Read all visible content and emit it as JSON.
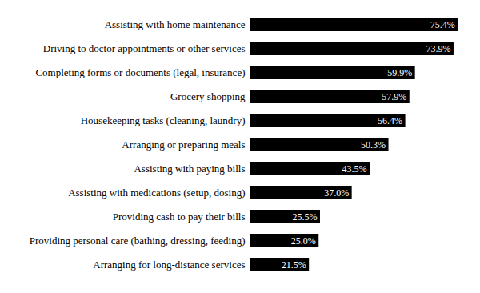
{
  "chart_data": {
    "type": "bar",
    "orientation": "horizontal",
    "categories": [
      "Assisting with home maintenance",
      "Driving to doctor appointments or other services",
      "Completing forms or documents (legal, insurance)",
      "Grocery shopping",
      "Housekeeping tasks (cleaning, laundry)",
      "Arranging or preparing meals",
      "Assisting with paying bills",
      "Assisting with medications (setup, dosing)",
      "Providing cash to pay their bills",
      "Providing personal care (bathing, dressing, feeding)",
      "Arranging for long-distance services"
    ],
    "values": [
      75.4,
      73.9,
      59.9,
      57.9,
      56.4,
      50.3,
      43.5,
      37.0,
      25.5,
      25.0,
      21.5
    ],
    "value_labels": [
      "75.4%",
      "73.9%",
      "59.9%",
      "57.9%",
      "56.4%",
      "50.3%",
      "43.5%",
      "37.0%",
      "25.5%",
      "25.0%",
      "21.5%"
    ],
    "color": "#000000",
    "xlim": [
      0,
      80
    ],
    "data_labels": true,
    "tick_labels": "y"
  }
}
